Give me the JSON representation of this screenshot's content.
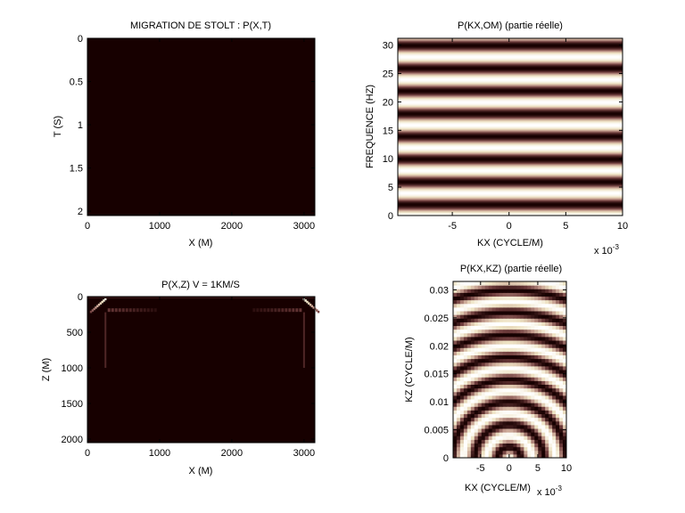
{
  "figure": {
    "background": "#ffffff",
    "dark_color": "#170000",
    "colormap": [
      "#170000",
      "#6e3c3c",
      "#c39a8c",
      "#eee3c3",
      "#ffffff"
    ]
  },
  "chart_data": [
    {
      "id": "p1",
      "type": "heatmap",
      "title": "MIGRATION DE STOLT : P(X,T)",
      "xlabel": "X (M)",
      "ylabel": "T (S)",
      "xlim": [
        0,
        3150
      ],
      "ylim": [
        0,
        2.05
      ],
      "y_reversed": true,
      "xticks": [
        0,
        1000,
        2000,
        3000
      ],
      "xtick_labels": [
        "0",
        "1000",
        "2000",
        "3000"
      ],
      "yticks": [
        0,
        0.5,
        1,
        1.5,
        2
      ],
      "ytick_labels": [
        "0",
        "0.5",
        "1",
        "1.5",
        "2"
      ],
      "exponent_label": "",
      "pattern": "uniform-dark"
    },
    {
      "id": "p2",
      "type": "heatmap",
      "title": "P(KX,OM) (partie réelle)",
      "xlabel": "KX (CYCLE/M)",
      "ylabel": "FREQUENCE (HZ)",
      "xlim": [
        -0.0098,
        0.01
      ],
      "ylim": [
        0,
        31.2
      ],
      "y_reversed": false,
      "xticks": [
        -0.005,
        0,
        0.005,
        0.01
      ],
      "xtick_labels": [
        "-5",
        "0",
        "5",
        "10"
      ],
      "yticks": [
        0,
        5,
        10,
        15,
        20,
        25,
        30
      ],
      "ytick_labels": [
        "0",
        "5",
        "10",
        "15",
        "20",
        "25",
        "30"
      ],
      "exponent_label": "x 10-3",
      "pattern": "horizontal-bands",
      "band_period_hz": 4
    },
    {
      "id": "p3",
      "type": "heatmap",
      "title": "P(X,Z)   V = 1KM/S",
      "xlabel": "X (M)",
      "ylabel": "Z (M)",
      "xlim": [
        0,
        3150
      ],
      "ylim": [
        0,
        2050
      ],
      "y_reversed": true,
      "xticks": [
        0,
        1000,
        2000,
        3000
      ],
      "xtick_labels": [
        "0",
        "1000",
        "2000",
        "3000"
      ],
      "yticks": [
        0,
        500,
        1000,
        1500,
        2000
      ],
      "ytick_labels": [
        "0",
        "500",
        "1000",
        "1500",
        "2000"
      ],
      "exponent_label": "",
      "pattern": "edge-artifacts",
      "artifact_x": [
        250,
        3000
      ],
      "artifact_depth": 220
    },
    {
      "id": "p4",
      "type": "heatmap",
      "title": "P(KX,KZ) (partie réelle)",
      "xlabel": "KX (CYCLE/M)",
      "ylabel": "KZ (CYCLE/M)",
      "xlim": [
        -0.0098,
        0.01
      ],
      "ylim": [
        0,
        0.0315
      ],
      "y_reversed": false,
      "xticks": [
        -0.005,
        0,
        0.005,
        0.01
      ],
      "xtick_labels": [
        "-5",
        "0",
        "5",
        "10"
      ],
      "yticks": [
        0,
        0.005,
        0.01,
        0.015,
        0.02,
        0.025,
        0.03
      ],
      "ytick_labels": [
        "0",
        "0.005",
        "0.01",
        "0.015",
        "0.02",
        "0.025",
        "0.03"
      ],
      "exponent_label": "x 10-3",
      "pattern": "concentric-arcs",
      "ring_period": 0.004
    }
  ]
}
